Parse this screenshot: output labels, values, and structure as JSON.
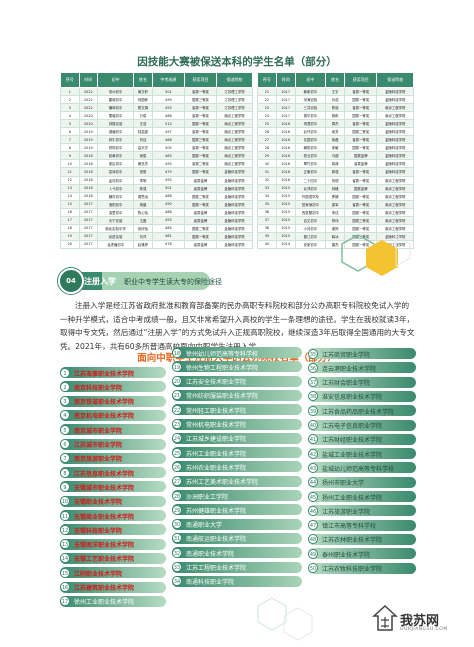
{
  "title1": "因技能大赛被保送本科的学生名单（部分）",
  "tableA": {
    "headers": [
      "序号",
      "时间",
      "初中",
      "姓名",
      "中考成绩",
      "获奖项目",
      "保送院校"
    ],
    "rows": [
      [
        "1",
        "2022",
        "常州初中",
        "黄文轩",
        "501",
        "省赛一等奖",
        "江苏理工学院"
      ],
      [
        "2",
        "2022",
        "雷城初中",
        "何国栋",
        "499",
        "国赛三等奖",
        "江苏理工学院"
      ],
      [
        "3",
        "2022",
        "横林初中",
        "蔡文娟",
        "493",
        "省赛一等奖",
        "江苏理工学院"
      ],
      [
        "4",
        "2020",
        "雪堰初中",
        "万俊",
        "486",
        "省赛一等奖",
        "南京工程学院"
      ],
      [
        "5",
        "2020",
        "钟楼实验",
        "汪浩",
        "513",
        "国赛一等奖",
        "南京工程学院"
      ],
      [
        "6",
        "2019",
        "湖塘初中",
        "陆嘉豪",
        "497",
        "省赛一等奖",
        "南京工程学院"
      ],
      [
        "7",
        "2019",
        "奔牛初中",
        "刘佳",
        "488",
        "国赛三等奖",
        "南京工程学院"
      ],
      [
        "8",
        "2019",
        "郑陆初中",
        "高天宇",
        "505",
        "省赛一等奖",
        "南京工程学院"
      ],
      [
        "9",
        "2018",
        "前黄初中",
        "吴俊",
        "483",
        "国赛一等奖",
        "南京工程学院"
      ],
      [
        "10",
        "2018",
        "邹区初中",
        "黄凯杰",
        "495",
        "省赛二等奖",
        "南京工程学院"
      ],
      [
        "11",
        "2018",
        "嘉泽初中",
        "张丽",
        "479",
        "国赛一等奖",
        "金陵科技学院"
      ],
      [
        "12",
        "2018",
        "孟河初中",
        "李明",
        "492",
        "省赛金牌",
        "金陵科技学院"
      ],
      [
        "13",
        "2018",
        "卜弋初中",
        "陈强",
        "501",
        "省赛金牌",
        "金陵科技学院"
      ],
      [
        "14",
        "2018",
        "魏村初中",
        "周思远",
        "488",
        "国赛二等奖",
        "金陵科技学院"
      ],
      [
        "15",
        "2017",
        "洛阳初中",
        "杨晨",
        "490",
        "国赛一等奖",
        "金陵科技学院"
      ],
      [
        "16",
        "2017",
        "湟里初中",
        "陈心怡",
        "486",
        "省赛金牌",
        "金陵科技学院"
      ],
      [
        "17",
        "2017",
        "天宁实验",
        "王磊",
        "493",
        "省赛金牌",
        "金陵科技学院"
      ],
      [
        "18",
        "2017",
        "新北实验中学",
        "张欣怡",
        "484",
        "国赛二等奖",
        "金陵科技学院"
      ],
      [
        "19",
        "2017",
        "武进实验",
        "刘洋",
        "481",
        "国赛一等奖",
        "金陵科技学院"
      ],
      [
        "20",
        "2017",
        "龙虎塘初中",
        "赵雅婷",
        "478",
        "省赛金牌",
        "金陵科技学院"
      ]
    ]
  },
  "tableB": {
    "headers": [
      "序号",
      "时间",
      "初中",
      "姓名",
      "获奖项目",
      "保送院校"
    ],
    "rows": [
      [
        "21",
        "2017",
        "薛家初中",
        "王宇",
        "省赛一等奖",
        "金陵科技学院"
      ],
      [
        "22",
        "2017",
        "河海实验",
        "孙浩",
        "国赛一等奖",
        "金陵科技学院"
      ],
      [
        "23",
        "2017",
        "三井实验",
        "陈晓",
        "省赛一等奖",
        "南京工程学院"
      ],
      [
        "24",
        "2017",
        "丽华初中",
        "杨帆",
        "国赛一等奖",
        "南京工程学院"
      ],
      [
        "25",
        "2016",
        "清潭初中",
        "周杰",
        "省赛一等奖",
        "金陵科技学院"
      ],
      [
        "26",
        "2016",
        "北环初中",
        "吴芳",
        "国赛二等奖",
        "金陵科技学院"
      ],
      [
        "27",
        "2016",
        "花园初中",
        "徐磊",
        "省赛一等奖",
        "金陵科技学院"
      ],
      [
        "28",
        "2016",
        "朝阳初中",
        "朱敏",
        "国赛一等奖",
        "金陵科技学院"
      ],
      [
        "29",
        "2016",
        "勤业初中",
        "马超",
        "国赛金牌",
        "金陵科技学院"
      ],
      [
        "30",
        "2016",
        "翠竹初中",
        "胡静",
        "省赛金牌",
        "金陵科技学院"
      ],
      [
        "31",
        "2016",
        "正衡初中",
        "郭强",
        "省赛一等奖",
        "金陵科技学院"
      ],
      [
        "32",
        "2016",
        "二十四中",
        "何丽",
        "省赛一等奖",
        "南京工程学院"
      ],
      [
        "33",
        "2015",
        "北郊初中",
        "林峰",
        "国赛金牌",
        "南京工程学院"
      ],
      [
        "34",
        "2015",
        "外国语学校",
        "罗娜",
        "国赛一等奖",
        "南京工程学院"
      ],
      [
        "35",
        "2015",
        "田家炳初中",
        "梁军",
        "省赛一等奖",
        "南京工程学院"
      ],
      [
        "36",
        "2015",
        "西夏墅初中",
        "宋佳",
        "国赛一等奖",
        "南京工程学院"
      ],
      [
        "37",
        "2015",
        "百丈初中",
        "郑伟",
        "国赛三等奖",
        "南京工程学院"
      ],
      [
        "38",
        "2015",
        "小河初中",
        "谢婷",
        "国赛一等奖",
        "南京工程学院"
      ],
      [
        "39",
        "2015",
        "春江初中",
        "韩冰",
        "国赛二等奖",
        "金陵科技学院"
      ],
      [
        "40",
        "2014",
        "安家初中",
        "唐杰",
        "国赛一等奖",
        "南京工程学院"
      ]
    ]
  },
  "badge": {
    "icon": "04",
    "label1": "注册入学",
    "label2": "职业中专学生读大专的保险途径"
  },
  "paragraph": "注册入学是经江苏省政府批准和教育部备案的民办高职专科院校和部分公办高职专科院校免试入学的一种升学模式，适合中考成绩一般，且又非常希望升入高校的学生一条理想的途径。学生在我校就读3年，取得中专文凭，然后通过“注册入学”的方式免试升入正规高职院校，继续深造3年后取得全国通用的大专文凭。2021年，共有60多所普通高校面向中职学生注册入学。",
  "title2": "面向中职学生注册入学的公办院校名单（部分）",
  "colA": [
    {
      "n": "1",
      "name": "江苏海事职业技术学院",
      "red": true
    },
    {
      "n": "2",
      "name": "南京科技职业学院",
      "red": true
    },
    {
      "n": "3",
      "name": "南京铁道职业技术学院",
      "red": true
    },
    {
      "n": "4",
      "name": "南京机电职业技术学院",
      "red": true
    },
    {
      "n": "5",
      "name": "南京城市职业学院",
      "red": true
    },
    {
      "n": "6",
      "name": "江苏城市职业学院",
      "red": true
    },
    {
      "n": "7",
      "name": "南京旅游职业学院",
      "red": true
    },
    {
      "n": "8",
      "name": "江苏信息职业技术学院",
      "red": true
    },
    {
      "n": "9",
      "name": "无锡城市职业技术学院",
      "red": true
    },
    {
      "n": "10",
      "name": "无锡职业技术学院",
      "red": true
    },
    {
      "n": "11",
      "name": "无锡商业职业技术学院",
      "red": true
    },
    {
      "n": "12",
      "name": "无锡科技职业学院",
      "red": true
    },
    {
      "n": "13",
      "name": "无锡南洋职业技术学院",
      "red": true
    },
    {
      "n": "14",
      "name": "无锡工艺职业技术学院",
      "red": true
    },
    {
      "n": "15",
      "name": "江阴职业技术学院",
      "red": true
    },
    {
      "n": "16",
      "name": "江苏建筑职业技术学院",
      "red": true
    },
    {
      "n": "17",
      "name": "徐州工业职业技术学院",
      "red": false
    }
  ],
  "colB": [
    {
      "n": "18",
      "name": "徐州幼儿师范高等专科学校"
    },
    {
      "n": "19",
      "name": "徐州生物工程职业技术学院"
    },
    {
      "n": "20",
      "name": "江苏安全技术职业学院"
    },
    {
      "n": "21",
      "name": "常州纺织服装职业技术学院"
    },
    {
      "n": "22",
      "name": "常州轻工职业技术学院"
    },
    {
      "n": "23",
      "name": "常州机电职业技术学院"
    },
    {
      "n": "24",
      "name": "江苏城乡建设职业学院"
    },
    {
      "n": "25",
      "name": "苏州工业职业技术学院"
    },
    {
      "n": "26",
      "name": "苏州农业职业技术学院"
    },
    {
      "n": "27",
      "name": "苏州工艺美术职业技术学院"
    },
    {
      "n": "28",
      "name": "沙洲职业工学院"
    },
    {
      "n": "29",
      "name": "苏州健雄职业技术学院"
    },
    {
      "n": "30",
      "name": "南通职业大学"
    },
    {
      "n": "31",
      "name": "南通航运职业技术学院"
    },
    {
      "n": "32",
      "name": "南通职业技术学院"
    },
    {
      "n": "33",
      "name": "江苏工程职业技术学院"
    },
    {
      "n": "34",
      "name": "南通科技职业学院"
    }
  ],
  "colC": [
    {
      "n": "35",
      "name": "江苏商贸职业学院",
      "red": false
    },
    {
      "n": "36",
      "name": "连云港职业技术学院",
      "red": false
    },
    {
      "n": "37",
      "name": "江苏财会职业学院",
      "red": false
    },
    {
      "n": "38",
      "name": "淮安信息职业技术学院",
      "red": false
    },
    {
      "n": "39",
      "name": "江苏食品药品职业技术学院",
      "red": false
    },
    {
      "n": "40",
      "name": "江苏电子信息职业学院",
      "red": false
    },
    {
      "n": "41",
      "name": "江苏财经职业技术学院",
      "red": false
    },
    {
      "n": "42",
      "name": "盐城工业职业技术学院",
      "red": false
    },
    {
      "n": "43",
      "name": "盐城幼儿师范高等专科学校",
      "red": false
    },
    {
      "n": "44",
      "name": "扬州市职业大学",
      "red": false
    },
    {
      "n": "45",
      "name": "扬州工业职业技术学院",
      "red": false
    },
    {
      "n": "46",
      "name": "江苏旅游职业学院",
      "red": false
    },
    {
      "n": "47",
      "name": "镇江市高等专科学校",
      "red": false
    },
    {
      "n": "48",
      "name": "江苏农林职业技术学院",
      "red": false
    },
    {
      "n": "49",
      "name": "泰州职业技术学院",
      "red": false
    },
    {
      "n": "50",
      "name": "江苏农牧科技职业学院",
      "red": false
    }
  ],
  "logo": {
    "text": "我苏网",
    "sub": "OURJIANGSU.COM"
  },
  "colors": {
    "primary": "#3a8a6e",
    "accent": "#e2671e",
    "highlight": "#d21a1a",
    "hex_yellow": "#f4c430"
  }
}
